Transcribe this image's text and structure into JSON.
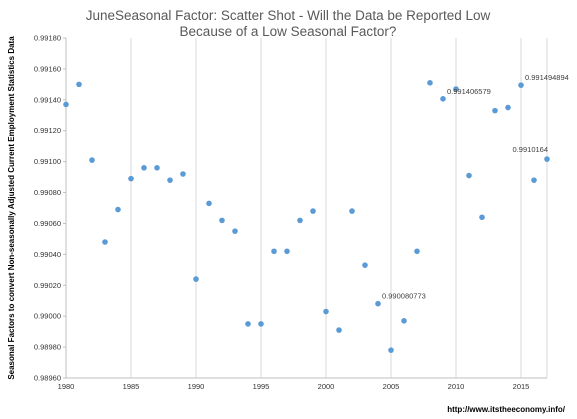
{
  "chart_data": {
    "type": "scatter",
    "title_lines": [
      "JuneSeasonal Factor: Scatter Shot - Will the Data be Reported Low",
      "Because of a Low Seasonal Factor?"
    ],
    "xlabel": "",
    "ylabel": "Seasonal Factors to convert Non-seasonally Adjusted Current Employment Statistics Data",
    "xlim": [
      1980,
      2017
    ],
    "ylim": [
      0.9896,
      0.9918
    ],
    "x_ticks": [
      1980,
      1985,
      1990,
      1995,
      2000,
      2005,
      2010,
      2015
    ],
    "y_ticks": [
      "0.98960",
      "0.98980",
      "0.99000",
      "0.99020",
      "0.99040",
      "0.99060",
      "0.99080",
      "0.99100",
      "0.99120",
      "0.99140",
      "0.99160",
      "0.99180"
    ],
    "y_tick_values": [
      0.9896,
      0.9898,
      0.99,
      0.9902,
      0.9904,
      0.9906,
      0.9908,
      0.991,
      0.9912,
      0.9914,
      0.9916,
      0.9918
    ],
    "grid": "vertical-only",
    "marker_color": "#5B9BD5",
    "series": [
      {
        "x": [
          1980,
          1981,
          1982,
          1983,
          1984,
          1985,
          1986,
          1987,
          1988,
          1989,
          1990,
          1991,
          1992,
          1993,
          1994,
          1995,
          1996,
          1997,
          1998,
          1999,
          2000,
          2001,
          2002,
          2003,
          2004,
          2005,
          2006,
          2007,
          2008,
          2009,
          2010,
          2011,
          2012,
          2013,
          2014,
          2015,
          2016,
          2017
        ],
        "y": [
          0.99137,
          0.9915,
          0.99101,
          0.99048,
          0.99069,
          0.99089,
          0.99096,
          0.99096,
          0.99088,
          0.99092,
          0.99024,
          0.99073,
          0.99062,
          0.99055,
          0.98995,
          0.98995,
          0.99042,
          0.99042,
          0.99062,
          0.99068,
          0.99003,
          0.98991,
          0.99068,
          0.99033,
          0.9900808,
          0.98978,
          0.98997,
          0.99042,
          0.99151,
          0.9914066,
          0.99147,
          0.99091,
          0.99064,
          0.99133,
          0.99135,
          0.9914949,
          0.99088,
          0.9910164
        ]
      }
    ],
    "annotations": [
      {
        "x": 2004,
        "y": 0.9900808,
        "text": "0.990080773"
      },
      {
        "x": 2009,
        "y": 0.9914066,
        "text": "0.991406579"
      },
      {
        "x": 2015,
        "y": 0.9914949,
        "text": "0.991494894"
      },
      {
        "x": 2017,
        "y": 0.9910164,
        "text": "0.9910164"
      }
    ]
  },
  "source": "http://www.itstheeconomy.info/"
}
